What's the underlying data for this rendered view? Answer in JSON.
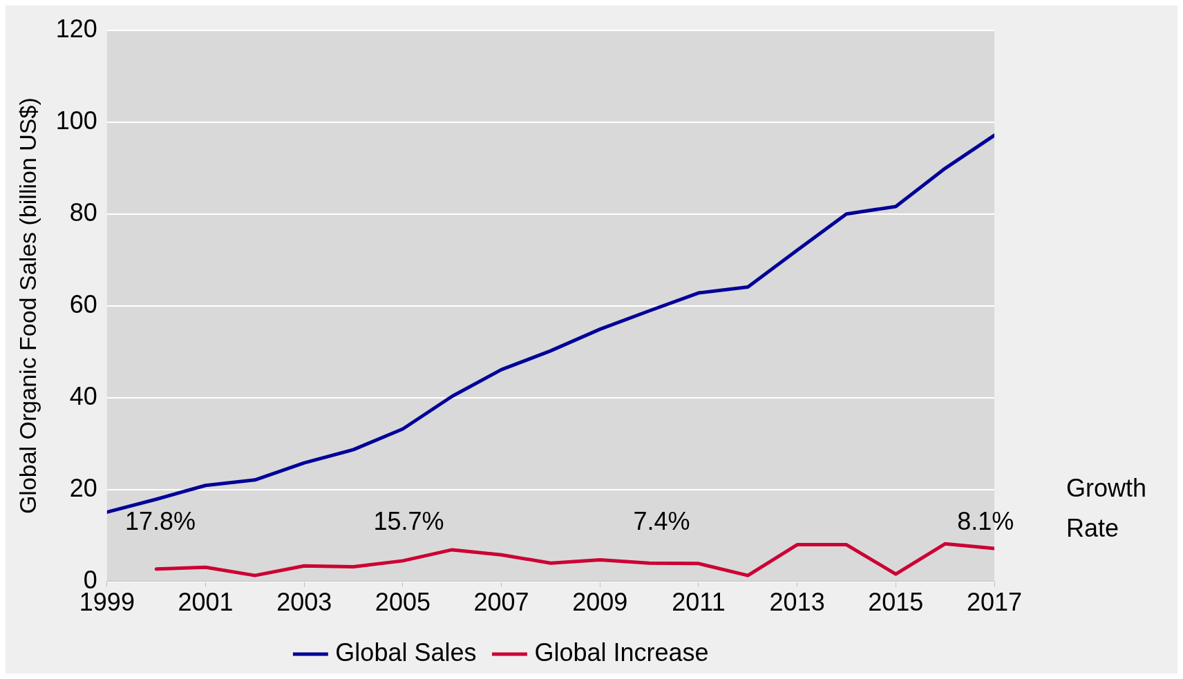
{
  "chart_data": {
    "type": "line",
    "ylabel": "Global Organic Food Sales (billion US$)",
    "x": [
      1999,
      2000,
      2001,
      2002,
      2003,
      2004,
      2005,
      2006,
      2007,
      2008,
      2009,
      2010,
      2011,
      2012,
      2013,
      2014,
      2015,
      2016,
      2017
    ],
    "series": [
      {
        "name": "Global Sales",
        "color": "#000099",
        "values": [
          15.1,
          17.9,
          20.9,
          22.1,
          25.8,
          28.7,
          33.2,
          40.3,
          46.1,
          50.2,
          54.9,
          58.9,
          62.8,
          64.1,
          72.1,
          80.0,
          81.6,
          89.9,
          97.1
        ]
      },
      {
        "name": "Global Increase",
        "color": "#cc0033",
        "values": [
          null,
          2.7,
          3.1,
          1.3,
          3.4,
          3.2,
          4.5,
          6.9,
          5.8,
          4.0,
          4.7,
          4.0,
          3.9,
          1.3,
          8.0,
          8.0,
          1.6,
          8.2,
          7.2
        ]
      }
    ],
    "xlim": [
      1999,
      2017
    ],
    "xticks": [
      1999,
      2001,
      2003,
      2005,
      2007,
      2009,
      2011,
      2013,
      2015,
      2017
    ],
    "ylim": [
      0,
      120
    ],
    "yticks": [
      0,
      20,
      40,
      60,
      80,
      100,
      120
    ],
    "grid": "y",
    "legend": "bottom",
    "marker": "none",
    "line_style": "solid",
    "annotations": [
      "17.8%",
      "15.7%",
      "7.4%",
      "8.1%",
      "Growth Rate"
    ]
  }
}
